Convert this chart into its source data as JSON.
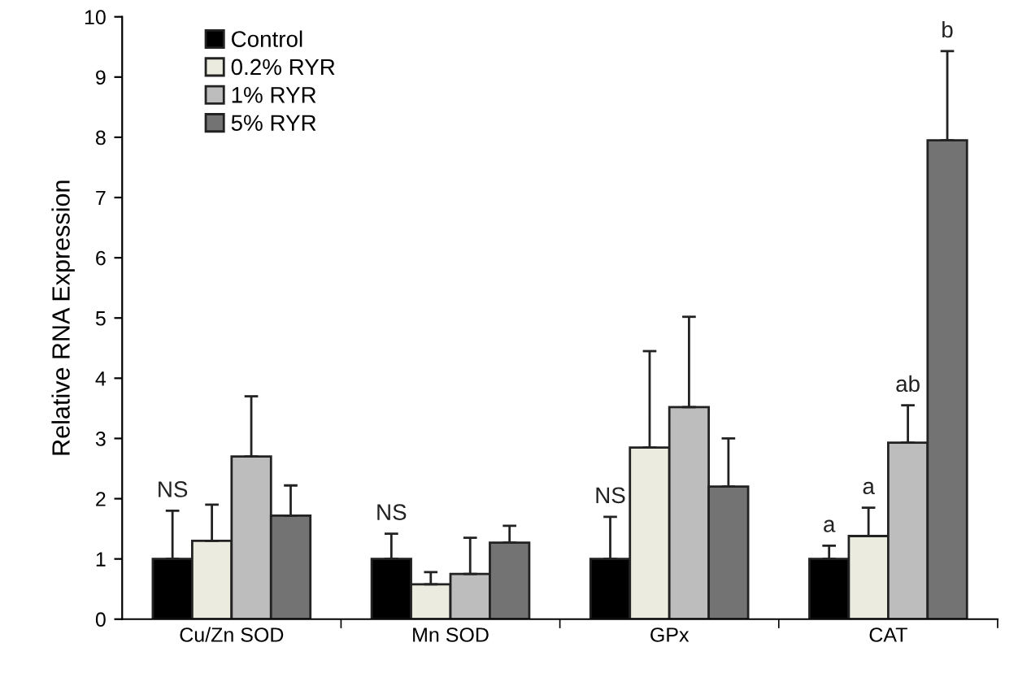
{
  "chart_data": {
    "type": "bar",
    "ylabel": "Relative RNA Expression",
    "categories": [
      "Cu/Zn SOD",
      "Mn SOD",
      "GPx",
      "CAT"
    ],
    "series": [
      {
        "name": "Control",
        "color": "#000000",
        "values": [
          1.0,
          1.0,
          1.0,
          1.0
        ],
        "errors": [
          [
            1.0,
            1.8
          ],
          [
            1.0,
            1.42
          ],
          [
            1.0,
            1.7
          ],
          [
            1.0,
            1.22
          ]
        ]
      },
      {
        "name": "0.2% RYR",
        "color": "#ecebe0",
        "values": [
          1.3,
          0.58,
          2.85,
          1.38
        ],
        "errors": [
          [
            1.3,
            1.9
          ],
          [
            0.58,
            0.78
          ],
          [
            2.85,
            4.45
          ],
          [
            1.38,
            1.85
          ]
        ]
      },
      {
        "name": "1% RYR",
        "color": "#bdbdbd",
        "values": [
          2.7,
          0.75,
          3.52,
          2.93
        ],
        "errors": [
          [
            2.7,
            3.7
          ],
          [
            0.75,
            1.35
          ],
          [
            3.52,
            5.02
          ],
          [
            2.93,
            3.55
          ]
        ]
      },
      {
        "name": "5% RYR",
        "color": "#737373",
        "values": [
          1.72,
          1.27,
          2.2,
          7.95
        ],
        "errors": [
          [
            1.72,
            2.22
          ],
          [
            1.27,
            1.55
          ],
          [
            2.2,
            3.0
          ],
          [
            7.95,
            9.43
          ]
        ]
      }
    ],
    "annotations": [
      "NS",
      "NS",
      "NS",
      "a",
      "a",
      "ab",
      "b"
    ],
    "ylim": [
      0,
      10
    ],
    "yticks": [
      0,
      1,
      2,
      3,
      4,
      5,
      6,
      7,
      8,
      9,
      10
    ],
    "grid": false,
    "legend": "top left"
  }
}
